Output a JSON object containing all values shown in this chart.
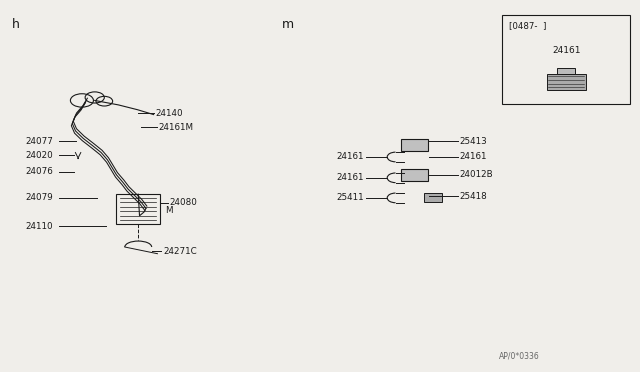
{
  "bg_color": "#f0eeea",
  "line_color": "#1a1a1a",
  "text_color": "#1a1a1a",
  "title_h": "h",
  "title_m": "m",
  "watermark": "AP/0*0336",
  "box_label": "[0487-  ]",
  "box_part": "24161"
}
